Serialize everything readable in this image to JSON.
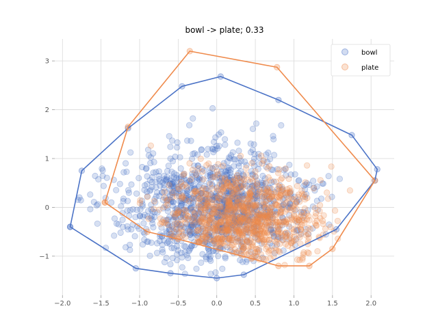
{
  "chart_data": {
    "type": "scatter",
    "title": "bowl -> plate; 0.33",
    "xlabel": "",
    "ylabel": "",
    "xlim": [
      -2.1,
      2.3
    ],
    "ylim": [
      -1.8,
      3.45
    ],
    "x_ticks": [
      -2.0,
      -1.5,
      -1.0,
      -0.5,
      0.0,
      0.5,
      1.0,
      1.5,
      2.0
    ],
    "y_ticks": [
      -1,
      0,
      1,
      2,
      3
    ],
    "x_tick_labels": [
      "−2.0",
      "−1.5",
      "−1.0",
      "−0.5",
      "0.0",
      "0.5",
      "1.0",
      "1.5",
      "2.0"
    ],
    "y_tick_labels": [
      "−1",
      "0",
      "1",
      "2",
      "3"
    ],
    "grid": true,
    "legend_position": "top-right",
    "series": [
      {
        "name": "bowl",
        "color": "#4a72c6",
        "center": [
          -0.05,
          0.05
        ],
        "spread": [
          0.6,
          0.6
        ],
        "count": 1100,
        "hull": [
          [
            -1.9,
            -0.4
          ],
          [
            -1.05,
            -1.25
          ],
          [
            -0.6,
            -1.35
          ],
          [
            0.0,
            -1.45
          ],
          [
            0.35,
            -1.38
          ],
          [
            1.55,
            -0.45
          ],
          [
            2.05,
            0.55
          ],
          [
            2.08,
            0.78
          ],
          [
            1.75,
            1.48
          ],
          [
            0.8,
            2.2
          ],
          [
            0.05,
            2.68
          ],
          [
            -0.45,
            2.48
          ],
          [
            -1.15,
            1.62
          ],
          [
            -1.75,
            0.75
          ],
          [
            -1.9,
            -0.4
          ]
        ]
      },
      {
        "name": "plate",
        "color": "#ef8a4b",
        "center": [
          0.35,
          -0.25
        ],
        "spread": [
          0.5,
          0.5
        ],
        "count": 900,
        "hull": [
          [
            -1.45,
            0.1
          ],
          [
            -0.9,
            -0.5
          ],
          [
            -0.5,
            -0.65
          ],
          [
            0.45,
            -1.05
          ],
          [
            0.8,
            -1.2
          ],
          [
            1.2,
            -1.2
          ],
          [
            1.5,
            -0.85
          ],
          [
            2.05,
            0.55
          ],
          [
            0.78,
            2.87
          ],
          [
            -0.35,
            3.2
          ],
          [
            -1.15,
            1.65
          ],
          [
            -1.45,
            0.1
          ]
        ]
      }
    ]
  }
}
